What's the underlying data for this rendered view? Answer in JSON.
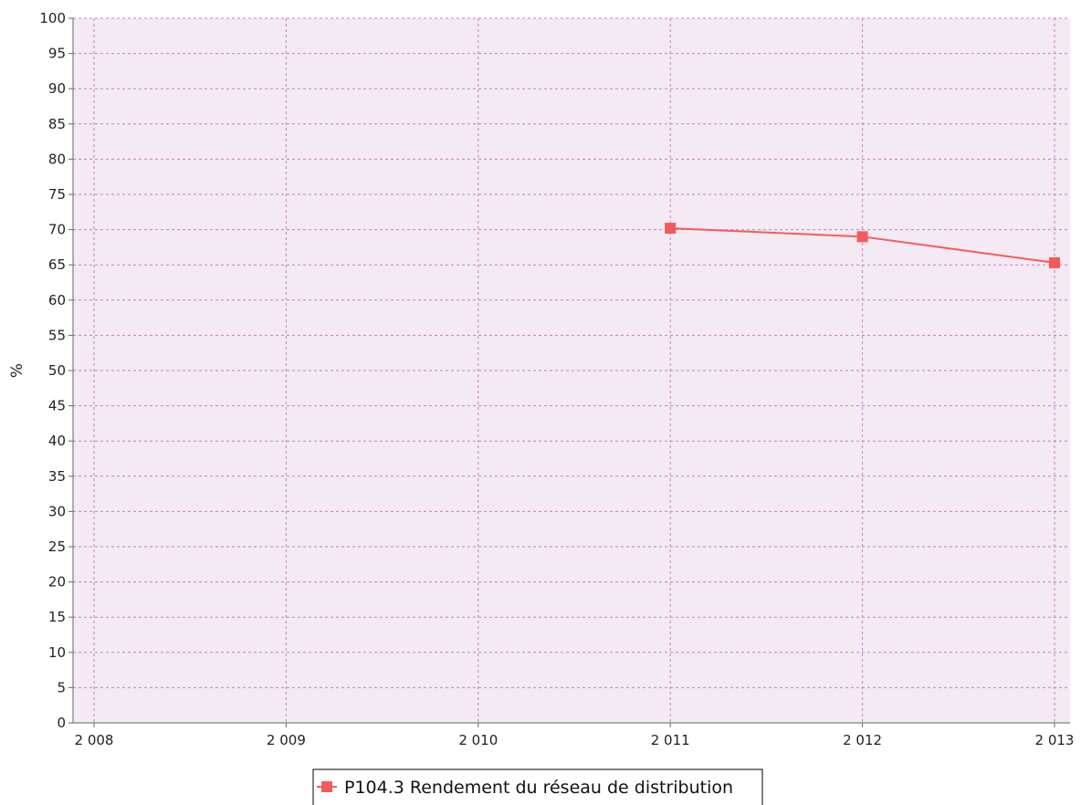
{
  "chart_data": {
    "type": "line",
    "title": "",
    "xlabel": "",
    "ylabel": "%",
    "x": [
      "2 008",
      "2 009",
      "2 010",
      "2 011",
      "2 012",
      "2 013"
    ],
    "ylim": [
      0,
      100
    ],
    "yticks": [
      0,
      5,
      10,
      15,
      20,
      25,
      30,
      35,
      40,
      45,
      50,
      55,
      60,
      65,
      70,
      75,
      80,
      85,
      90,
      95,
      100
    ],
    "grid": true,
    "legend_position": "bottom-center",
    "series": [
      {
        "name": "P104.3 Rendement du réseau de distribution",
        "color": "#f55a5a",
        "values": [
          null,
          null,
          null,
          70.2,
          69.0,
          65.3
        ]
      }
    ]
  },
  "colors": {
    "plot_background": "#f3eaf3",
    "grid": "#c77fc7",
    "axis": "#666666"
  }
}
